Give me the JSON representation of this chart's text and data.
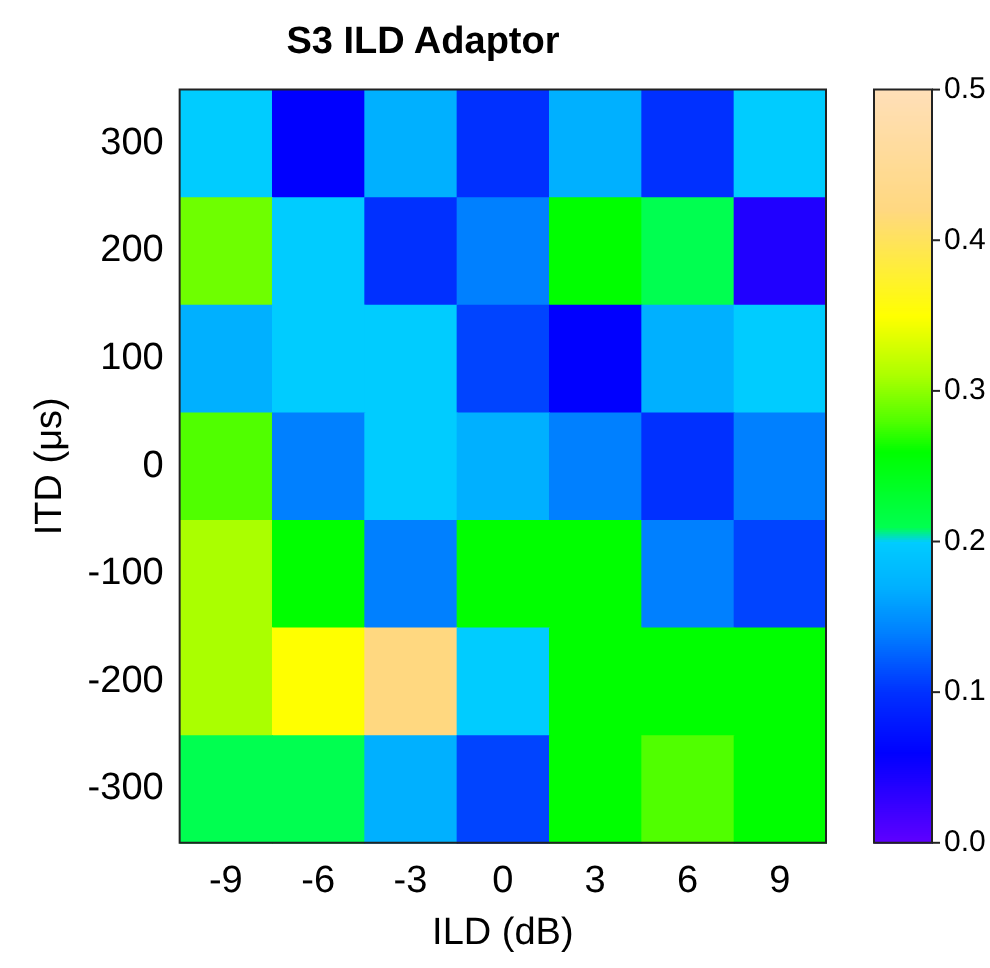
{
  "chart_data": {
    "type": "heatmap",
    "title": "S3 ILD Adaptor",
    "xlabel": "ILD (dB)",
    "ylabel": "ITD (μs)",
    "categories": [
      "-9",
      "-6",
      "-3",
      "0",
      "3",
      "6",
      "9"
    ],
    "y_categories": [
      "300",
      "200",
      "100",
      "0",
      "-100",
      "-200",
      "-300"
    ],
    "cells": [
      [
        0.2,
        0.06,
        0.17,
        0.1,
        0.17,
        0.1,
        0.2
      ],
      [
        0.29,
        0.2,
        0.1,
        0.14,
        0.26,
        0.21,
        0.04
      ],
      [
        0.17,
        0.2,
        0.2,
        0.11,
        0.06,
        0.17,
        0.2
      ],
      [
        0.28,
        0.14,
        0.2,
        0.17,
        0.14,
        0.1,
        0.14
      ],
      [
        0.31,
        0.26,
        0.14,
        0.26,
        0.26,
        0.14,
        0.11
      ],
      [
        0.31,
        0.35,
        0.42,
        0.2,
        0.26,
        0.26,
        0.26
      ],
      [
        0.21,
        0.21,
        0.17,
        0.11,
        0.26,
        0.28,
        0.26
      ]
    ],
    "clim": [
      0,
      0.5
    ],
    "cticks": [
      {
        "value": 0,
        "label": "0.0"
      },
      0.1,
      0.2,
      0.3,
      0.4,
      {
        "value": 0.5,
        "label": "0.5"
      }
    ]
  }
}
